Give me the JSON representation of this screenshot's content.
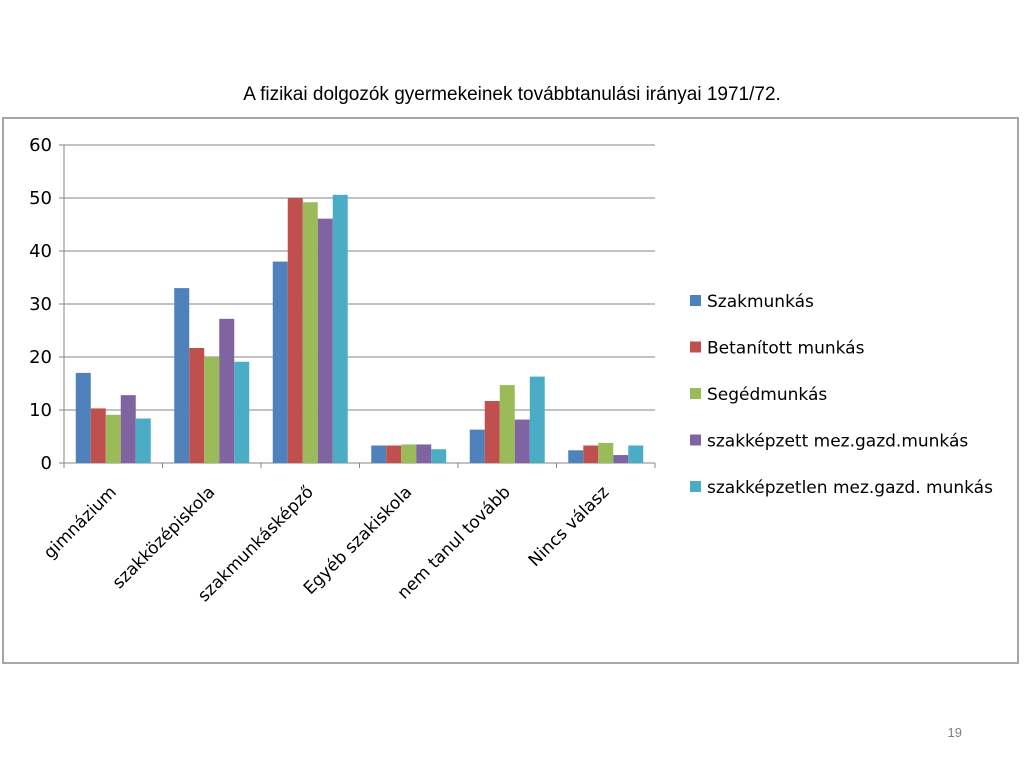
{
  "slide": {
    "title": "A fizikai dolgozók gyermekeinek továbbtanulási irányai 1971/72.",
    "page_number": "19"
  },
  "chart_data": {
    "type": "bar",
    "title": "",
    "xlabel": "",
    "ylabel": "",
    "ylim": [
      0,
      60
    ],
    "yticks": [
      0,
      10,
      20,
      30,
      40,
      50,
      60
    ],
    "grid": true,
    "legend_position": "right",
    "categories": [
      "gimnázium",
      "szakközépiskola",
      "szakmunkásképző",
      "Egyéb szakiskola",
      "nem tanul tovább",
      "Nincs válasz"
    ],
    "series": [
      {
        "name": "Szakmunkás",
        "color": "#4f81bd",
        "values": [
          17,
          33,
          38,
          3.3,
          6.3,
          2.4
        ]
      },
      {
        "name": "Betanított munkás",
        "color": "#c0504d",
        "values": [
          10.3,
          21.7,
          50,
          3.3,
          11.7,
          3.3
        ]
      },
      {
        "name": "Segédmunkás",
        "color": "#9bbb59",
        "values": [
          9.1,
          20,
          49.2,
          3.5,
          14.7,
          3.8
        ]
      },
      {
        "name": "szakképzett mez.gazd.munkás",
        "color": "#8064a2",
        "values": [
          12.8,
          27.2,
          46.1,
          3.5,
          8.2,
          1.5
        ]
      },
      {
        "name": "szakképzetlen mez.gazd. munkás",
        "color": "#4bacc6",
        "values": [
          8.4,
          19.1,
          50.6,
          2.6,
          16.3,
          3.3
        ]
      }
    ]
  }
}
